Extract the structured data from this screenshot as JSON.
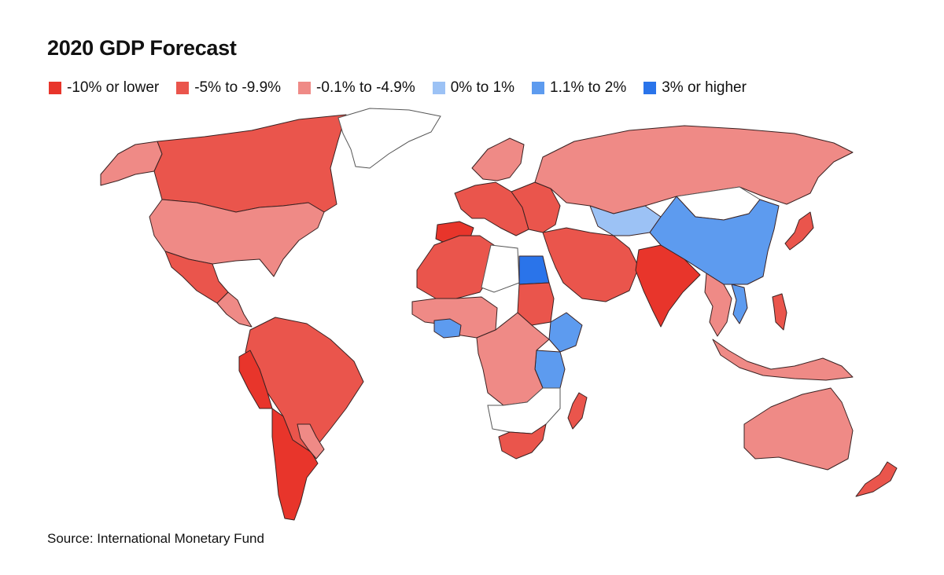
{
  "title": "2020 GDP Forecast",
  "legend": [
    {
      "label": "-10% or lower",
      "color": "#e8352b"
    },
    {
      "label": "-5% to -9.9%",
      "color": "#ea554c"
    },
    {
      "label": "-0.1% to -4.9%",
      "color": "#ef8a86"
    },
    {
      "label": "0% to 1%",
      "color": "#9cc2f5"
    },
    {
      "label": "1.1% to 2%",
      "color": "#5d9bef"
    },
    {
      "label": "3% or higher",
      "color": "#2a74ea"
    }
  ],
  "source": "Source: International Monetary Fund",
  "regions": [
    {
      "name": "alaska",
      "cat": 2
    },
    {
      "name": "canada",
      "cat": 1
    },
    {
      "name": "greenland",
      "cat": null
    },
    {
      "name": "usa",
      "cat": 2
    },
    {
      "name": "mexico",
      "cat": 1
    },
    {
      "name": "central-america",
      "cat": 2
    },
    {
      "name": "south-america-north",
      "cat": 1
    },
    {
      "name": "peru-ecuador",
      "cat": 0
    },
    {
      "name": "argentina-chile",
      "cat": 0
    },
    {
      "name": "uruguay-paraguay",
      "cat": 2
    },
    {
      "name": "iberia",
      "cat": 0
    },
    {
      "name": "western-europe",
      "cat": 1
    },
    {
      "name": "scandinavia",
      "cat": 2
    },
    {
      "name": "eastern-europe",
      "cat": 1
    },
    {
      "name": "russia",
      "cat": 2
    },
    {
      "name": "north-africa-west",
      "cat": 1
    },
    {
      "name": "libya",
      "cat": null
    },
    {
      "name": "egypt",
      "cat": 5
    },
    {
      "name": "west-africa",
      "cat": 2
    },
    {
      "name": "ghana-ivory-coast",
      "cat": 4
    },
    {
      "name": "sudan",
      "cat": 1
    },
    {
      "name": "ethiopia",
      "cat": 4
    },
    {
      "name": "kenya-tanzania",
      "cat": 4
    },
    {
      "name": "central-africa",
      "cat": 2
    },
    {
      "name": "southern-africa",
      "cat": 1
    },
    {
      "name": "southern-africa-nodata",
      "cat": null
    },
    {
      "name": "madagascar",
      "cat": 1
    },
    {
      "name": "middle-east",
      "cat": 1
    },
    {
      "name": "central-asia",
      "cat": 3
    },
    {
      "name": "india",
      "cat": 0
    },
    {
      "name": "china",
      "cat": 4
    },
    {
      "name": "mongolia",
      "cat": null
    },
    {
      "name": "southeast-asia",
      "cat": 2
    },
    {
      "name": "vietnam",
      "cat": 4
    },
    {
      "name": "japan",
      "cat": 1
    },
    {
      "name": "indonesia",
      "cat": 2
    },
    {
      "name": "philippines",
      "cat": 1
    },
    {
      "name": "australia",
      "cat": 2
    },
    {
      "name": "new-zealand",
      "cat": 1
    }
  ]
}
